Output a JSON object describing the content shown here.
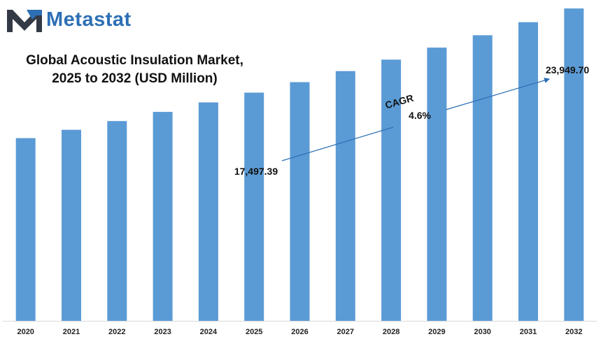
{
  "brand": {
    "name": "Metastat",
    "logo_icon": "metastat-m-logo-icon",
    "colors": {
      "dark": "#333a45",
      "accent": "#2d6fb5"
    }
  },
  "chart_data": {
    "type": "bar",
    "title_lines": [
      "Global Acoustic Insulation Market,",
      "2025 to 2032 (USD Million)"
    ],
    "categories": [
      "2020",
      "2021",
      "2022",
      "2023",
      "2024",
      "2025",
      "2026",
      "2027",
      "2028",
      "2029",
      "2030",
      "2031",
      "2032"
    ],
    "values": [
      14010,
      14650,
      15320,
      16020,
      16750,
      17497.39,
      18300,
      19150,
      20030,
      20950,
      21900,
      22900,
      23949.7
    ],
    "ylim": [
      0,
      24600
    ],
    "bar_color": "#5b9bd5",
    "grid": false,
    "annotations": {
      "start_label": "17,497.39",
      "end_label": "23,949.70",
      "cagr_label": "CAGR",
      "cagr_value": "4.6%"
    }
  }
}
